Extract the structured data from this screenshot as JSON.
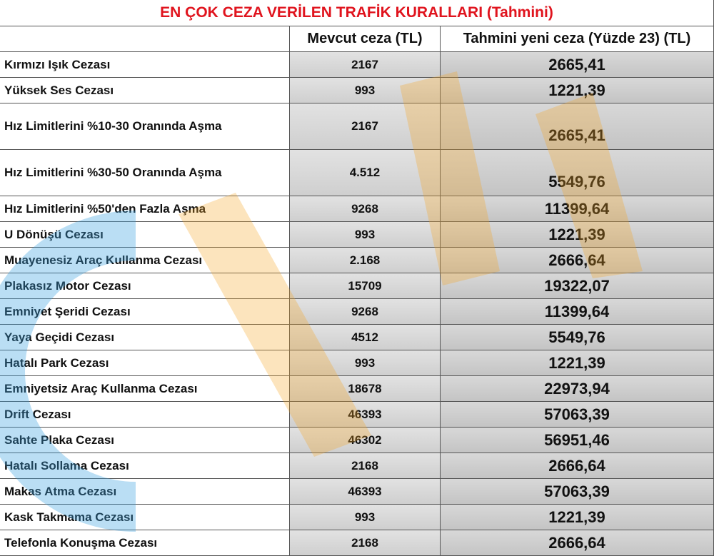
{
  "title": "EN ÇOK CEZA VERİLEN TRAFİK KURALLARI (Tahmini)",
  "table": {
    "columns": [
      "Mevcut ceza (TL)",
      "Tahmini yeni ceza (Yüzde 23) (TL)"
    ],
    "rows": [
      [
        "Kırmızı Işık Cezası",
        "2167",
        "2665,41"
      ],
      [
        "Yüksek Ses Cezası",
        "993",
        "1221,39"
      ],
      [
        "Hız Limitlerini %10-30 Oranında Aşma",
        "2167",
        "2665,41"
      ],
      [
        "Hız Limitlerini %30-50 Oranında Aşma",
        "4.512",
        "5549,76"
      ],
      [
        "Hız Limitlerini %50'den Fazla Aşma",
        "9268",
        "11399,64"
      ],
      [
        "U Dönüşü Cezası",
        "993",
        "1221,39"
      ],
      [
        "Muayenesiz Araç Kullanma Cezası",
        "2.168",
        "2666,64"
      ],
      [
        "Plakasız Motor Cezası",
        "15709",
        "19322,07"
      ],
      [
        "Emniyet Şeridi Cezası",
        "9268",
        "11399,64"
      ],
      [
        "Yaya Geçidi Cezası",
        "4512",
        "5549,76"
      ],
      [
        "Hatalı Park Cezası",
        "993",
        "1221,39"
      ],
      [
        "Emniyetsiz Araç Kullanma Cezası",
        "18678",
        "22973,94"
      ],
      [
        "Drift Cezası",
        "46393",
        "57063,39"
      ],
      [
        "Sahte Plaka Cezası",
        "46302",
        "56951,46"
      ],
      [
        "Hatalı Sollama Cezası",
        "2168",
        "2666,64"
      ],
      [
        "Makas Atma Cezası",
        "46393",
        "57063,39"
      ],
      [
        "Kask Takmama Cezası",
        "993",
        "1221,39"
      ],
      [
        "Telefonla Konuşma Cezası",
        "2168",
        "2666,64"
      ]
    ]
  }
}
